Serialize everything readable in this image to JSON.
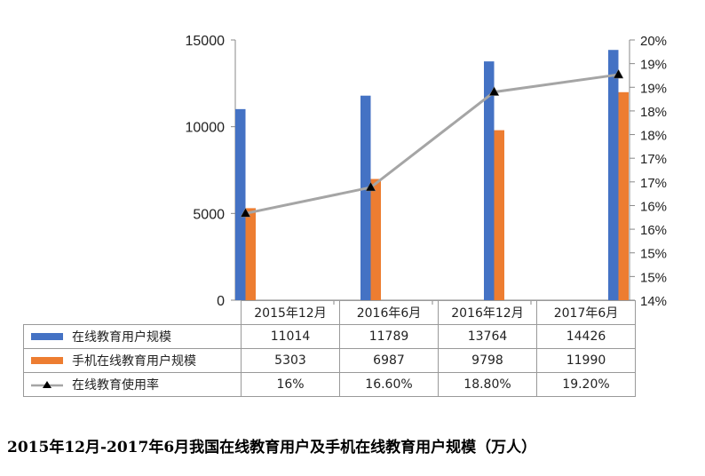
{
  "caption": "2015年12月-2017年6月我国在线教育用户及手机在线教育用户规模（万人）",
  "table": {
    "headers": [
      "2015年12月",
      "2016年6月",
      "2016年12月",
      "2017年6月"
    ],
    "rows": [
      {
        "label": "在线教育用户规模",
        "values": [
          "11014",
          "11789",
          "13764",
          "14426"
        ],
        "color": "#4472C4",
        "marker": "bar"
      },
      {
        "label": "手机在线教育用户规模",
        "values": [
          "5303",
          "6987",
          "9798",
          "11990"
        ],
        "color": "#ED7D31",
        "marker": "bar"
      },
      {
        "label": "在线教育使用率",
        "values": [
          "16%",
          "16.60%",
          "18.80%",
          "19.20%"
        ],
        "color": "#A5A5A5",
        "marker": "line-triangle"
      }
    ]
  },
  "left_axis": {
    "ticks": [
      "15000",
      "10000",
      "5000",
      "0"
    ]
  },
  "right_axis": {
    "ticks": [
      "20%",
      "19%",
      "19%",
      "18%",
      "18%",
      "17%",
      "17%",
      "16%",
      "16%",
      "15%",
      "15%",
      "14%"
    ]
  },
  "chart_data": {
    "type": "bar",
    "title": "2015年12月-2017年6月我国在线教育用户及手机在线教育用户规模（万人）",
    "categories": [
      "2015年12月",
      "2016年6月",
      "2016年12月",
      "2017年6月"
    ],
    "series": [
      {
        "name": "在线教育用户规模",
        "type": "bar",
        "axis": "left",
        "color": "#4472C4",
        "values": [
          11014,
          11789,
          13764,
          14426
        ]
      },
      {
        "name": "手机在线教育用户规模",
        "type": "bar",
        "axis": "left",
        "color": "#ED7D31",
        "values": [
          5303,
          6987,
          9798,
          11990
        ]
      },
      {
        "name": "在线教育使用率",
        "type": "line",
        "axis": "right",
        "color": "#A5A5A5",
        "marker": "triangle",
        "values": [
          0.16,
          0.166,
          0.188,
          0.192
        ]
      }
    ],
    "ylim_left": [
      0,
      15000
    ],
    "ylim_right": [
      0.14,
      0.2
    ],
    "left_ticks": [
      0,
      5000,
      10000,
      15000
    ],
    "right_ticks_labels": [
      "14%",
      "15%",
      "15%",
      "16%",
      "16%",
      "17%",
      "17%",
      "18%",
      "18%",
      "19%",
      "19%",
      "20%"
    ],
    "xlabel": "",
    "ylabel": "",
    "legend_position": "data-table",
    "grid": false
  }
}
